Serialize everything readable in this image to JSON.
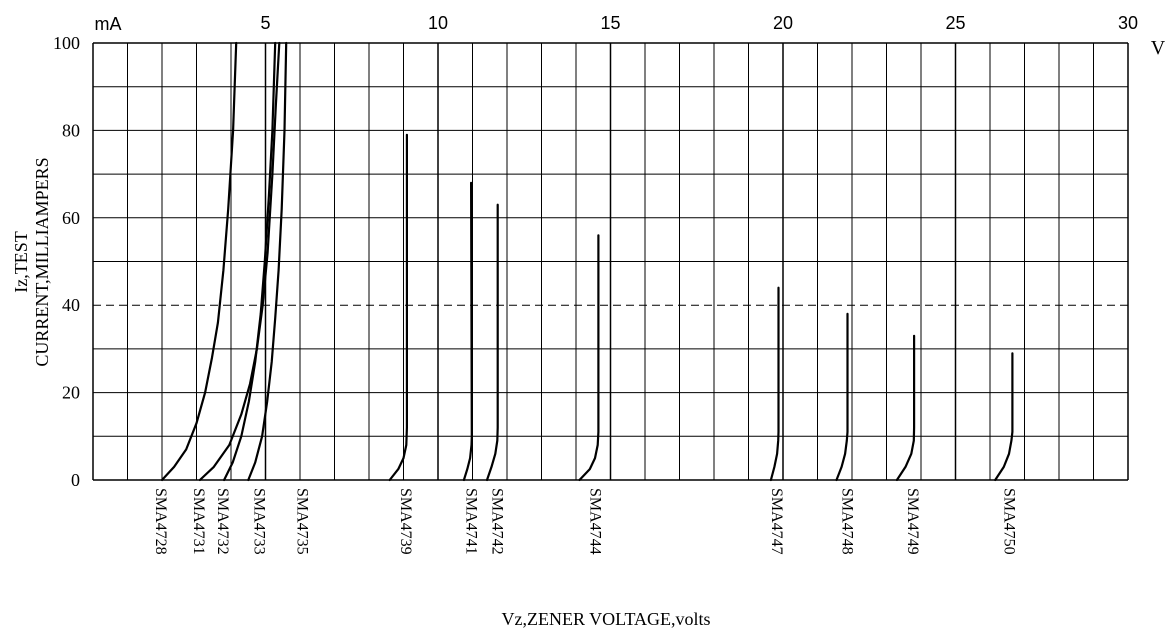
{
  "chart_data": {
    "type": "line",
    "title": "",
    "xlabel": "Vz,ZENER VOLTAGE,volts",
    "ylabel": "Iz,TEST CURRENT,MILLIAMPERS",
    "ylabel_lines": [
      "Iz,TEST",
      "CURRENT,MILLIAMPERS"
    ],
    "x_unit": "V",
    "y_unit": "mA",
    "xlim": [
      0,
      30
    ],
    "ylim": [
      0,
      100
    ],
    "x_major_ticks": [
      "5",
      "10",
      "15",
      "20",
      "25",
      "30"
    ],
    "x_major_values": [
      5,
      10,
      15,
      20,
      25,
      30
    ],
    "y_ticks": [
      "0",
      "20",
      "40",
      "60",
      "80",
      "100"
    ],
    "y_tick_values": [
      0,
      20,
      40,
      60,
      80,
      100
    ],
    "x_grid_step": 1,
    "y_grid_step": 10,
    "grid": true,
    "reference_line": {
      "y": 40,
      "style": "dashed"
    },
    "line_color": "#000000",
    "series": [
      {
        "name": "SMA4728",
        "label_x": 2.0,
        "points": [
          [
            2.0,
            0
          ],
          [
            2.35,
            3
          ],
          [
            2.7,
            7
          ],
          [
            3.0,
            13
          ],
          [
            3.25,
            20
          ],
          [
            3.45,
            28
          ],
          [
            3.62,
            36
          ],
          [
            3.78,
            48
          ],
          [
            3.92,
            62
          ],
          [
            4.06,
            80
          ],
          [
            4.15,
            100
          ]
        ]
      },
      {
        "name": "SMA4731",
        "label_x": 3.1,
        "points": [
          [
            3.1,
            0
          ],
          [
            3.5,
            3
          ],
          [
            3.95,
            8
          ],
          [
            4.3,
            15
          ],
          [
            4.55,
            22
          ],
          [
            4.75,
            30
          ],
          [
            4.92,
            40
          ],
          [
            5.06,
            52
          ],
          [
            5.2,
            70
          ],
          [
            5.3,
            86
          ],
          [
            5.4,
            100
          ]
        ]
      },
      {
        "name": "SMA4732",
        "label_x": 3.8,
        "points": [
          [
            3.8,
            0
          ],
          [
            4.05,
            4
          ],
          [
            4.3,
            10
          ],
          [
            4.52,
            18
          ],
          [
            4.7,
            27
          ],
          [
            4.86,
            38
          ],
          [
            4.98,
            50
          ],
          [
            5.1,
            65
          ],
          [
            5.2,
            80
          ],
          [
            5.28,
            100
          ]
        ]
      },
      {
        "name": "SMA4733",
        "label_x": 4.85,
        "points": [
          [
            4.5,
            0
          ],
          [
            4.7,
            4
          ],
          [
            4.9,
            10
          ],
          [
            5.05,
            18
          ],
          [
            5.18,
            27
          ],
          [
            5.28,
            37
          ],
          [
            5.38,
            48
          ],
          [
            5.47,
            62
          ],
          [
            5.55,
            80
          ],
          [
            5.6,
            100
          ]
        ]
      },
      {
        "name": "SMA4735",
        "label_x": 6.1,
        "points": []
      },
      {
        "name": "SMA4739",
        "label_x": 9.1,
        "points": [
          [
            8.6,
            0
          ],
          [
            8.85,
            2.5
          ],
          [
            9.0,
            5
          ],
          [
            9.08,
            8
          ],
          [
            9.1,
            12
          ],
          [
            9.1,
            79
          ]
        ]
      },
      {
        "name": "SMA4741",
        "label_x": 11.0,
        "points": [
          [
            10.75,
            0
          ],
          [
            10.85,
            2.5
          ],
          [
            10.93,
            5
          ],
          [
            10.97,
            8
          ],
          [
            10.98,
            10
          ],
          [
            10.96,
            68
          ]
        ]
      },
      {
        "name": "SMA4742",
        "label_x": 11.75,
        "points": [
          [
            11.42,
            0
          ],
          [
            11.55,
            3
          ],
          [
            11.66,
            6
          ],
          [
            11.72,
            9
          ],
          [
            11.73,
            12
          ],
          [
            11.73,
            63
          ]
        ]
      },
      {
        "name": "SMA4744",
        "label_x": 14.6,
        "points": [
          [
            14.1,
            0
          ],
          [
            14.4,
            2.5
          ],
          [
            14.55,
            5
          ],
          [
            14.63,
            8
          ],
          [
            14.65,
            11
          ],
          [
            14.65,
            56
          ]
        ]
      },
      {
        "name": "SMA4747",
        "label_x": 19.85,
        "points": [
          [
            19.65,
            0
          ],
          [
            19.75,
            3
          ],
          [
            19.83,
            6
          ],
          [
            19.86,
            9
          ],
          [
            19.87,
            11
          ],
          [
            19.87,
            44
          ]
        ]
      },
      {
        "name": "SMA4748",
        "label_x": 21.9,
        "points": [
          [
            21.55,
            0
          ],
          [
            21.7,
            3
          ],
          [
            21.8,
            6
          ],
          [
            21.85,
            9
          ],
          [
            21.87,
            11
          ],
          [
            21.87,
            38
          ]
        ]
      },
      {
        "name": "SMA4749",
        "label_x": 23.8,
        "points": [
          [
            23.3,
            0
          ],
          [
            23.55,
            3
          ],
          [
            23.72,
            6
          ],
          [
            23.79,
            9
          ],
          [
            23.8,
            12
          ],
          [
            23.8,
            33
          ]
        ]
      },
      {
        "name": "SMA4750",
        "label_x": 26.6,
        "points": [
          [
            26.15,
            0
          ],
          [
            26.4,
            3
          ],
          [
            26.55,
            6
          ],
          [
            26.62,
            9
          ],
          [
            26.65,
            11
          ],
          [
            26.65,
            29
          ]
        ]
      }
    ]
  }
}
